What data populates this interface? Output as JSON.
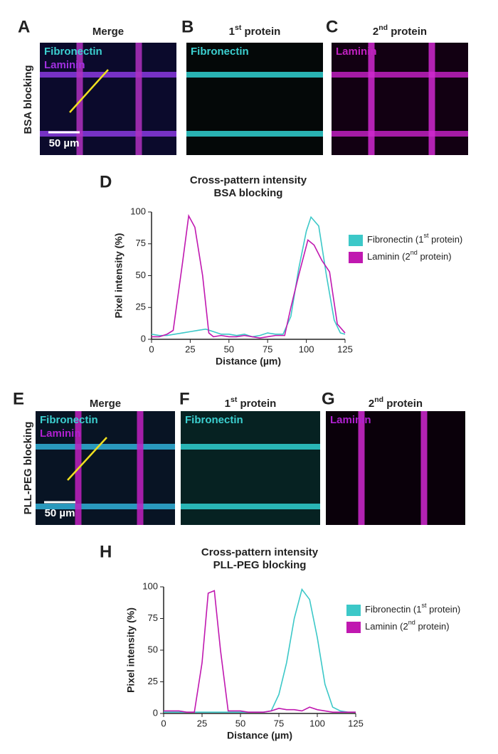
{
  "row_labels": [
    "BSA blocking",
    "PLL-PEG blocking"
  ],
  "panels": [
    {
      "letter": "A",
      "title": "Merge",
      "labels": [
        "Fibronectin",
        "Laminin"
      ],
      "scale_bar": "50 µm"
    },
    {
      "letter": "B",
      "title": "1st protein",
      "labels": [
        "Fibronectin"
      ]
    },
    {
      "letter": "C",
      "title": "2nd protein",
      "labels": [
        "Laminin"
      ]
    },
    {
      "letter": "E",
      "title": "Merge",
      "labels": [
        "Fibronectin",
        "Laminin"
      ],
      "scale_bar": "50 µm"
    },
    {
      "letter": "F",
      "title": "1st protein",
      "labels": [
        "Fibronectin"
      ]
    },
    {
      "letter": "G",
      "title": "2nd protein",
      "labels": [
        "Laminin"
      ]
    }
  ],
  "chart_data": [
    {
      "type": "line",
      "letter": "D",
      "title": "Cross-pattern intensity",
      "subtitle": "BSA blocking",
      "x_label": "Distance (µm)",
      "y_label": "Pixel intensity (%)",
      "xlim": [
        0,
        125
      ],
      "xticks": [
        0,
        25,
        50,
        75,
        100,
        125
      ],
      "ylim": [
        0,
        100
      ],
      "yticks": [
        0,
        25,
        50,
        75,
        100
      ],
      "series": [
        {
          "name": "Fibronectin (1st protein)",
          "color": "#3cc8c8",
          "x": [
            0,
            5,
            10,
            15,
            20,
            25,
            30,
            35,
            40,
            45,
            50,
            55,
            60,
            65,
            70,
            75,
            80,
            85,
            90,
            95,
            100,
            103,
            108,
            113,
            118,
            122,
            125
          ],
          "values": [
            4,
            3,
            3,
            4,
            5,
            6,
            7,
            8,
            6,
            4,
            4,
            3,
            4,
            2,
            3,
            5,
            4,
            4,
            18,
            55,
            85,
            96,
            89,
            50,
            15,
            5,
            4
          ]
        },
        {
          "name": "Laminin (2nd protein)",
          "color": "#c018b0",
          "x": [
            0,
            5,
            10,
            14,
            20,
            24,
            28,
            33,
            37,
            40,
            45,
            50,
            55,
            60,
            65,
            70,
            75,
            80,
            86,
            90,
            95,
            101,
            105,
            110,
            115,
            120,
            125
          ],
          "values": [
            2,
            2,
            4,
            7,
            60,
            97,
            88,
            50,
            5,
            2,
            3,
            2,
            2,
            3,
            2,
            1,
            2,
            3,
            3,
            25,
            50,
            78,
            74,
            62,
            53,
            12,
            5
          ]
        }
      ]
    },
    {
      "type": "line",
      "letter": "H",
      "title": "Cross-pattern intensity",
      "subtitle": "PLL-PEG blocking",
      "x_label": "Distance (µm)",
      "y_label": "Pixel intensity (%)",
      "xlim": [
        0,
        125
      ],
      "xticks": [
        0,
        25,
        50,
        75,
        100,
        125
      ],
      "ylim": [
        0,
        100
      ],
      "yticks": [
        0,
        25,
        50,
        75,
        100
      ],
      "series": [
        {
          "name": "Fibronectin (1st protein)",
          "color": "#3cc8c8",
          "x": [
            0,
            5,
            10,
            15,
            20,
            25,
            30,
            35,
            40,
            45,
            50,
            55,
            60,
            65,
            70,
            75,
            80,
            85,
            90,
            95,
            100,
            105,
            110,
            115,
            120,
            125
          ],
          "values": [
            1,
            1,
            1,
            1,
            1,
            1,
            1,
            1,
            1,
            1,
            1,
            1,
            1,
            1,
            2,
            15,
            40,
            75,
            98,
            90,
            60,
            23,
            5,
            2,
            1,
            1
          ]
        },
        {
          "name": "Laminin (2nd protein)",
          "color": "#c018b0",
          "x": [
            0,
            5,
            10,
            15,
            20,
            25,
            29,
            33,
            37,
            42,
            45,
            50,
            55,
            60,
            65,
            70,
            75,
            80,
            85,
            90,
            95,
            100,
            105,
            110,
            115,
            120,
            125
          ],
          "values": [
            2,
            2,
            2,
            1,
            1,
            40,
            95,
            97,
            50,
            2,
            2,
            2,
            1,
            1,
            1,
            2,
            4,
            3,
            3,
            2,
            5,
            3,
            2,
            1,
            1,
            1,
            1
          ]
        }
      ]
    }
  ]
}
